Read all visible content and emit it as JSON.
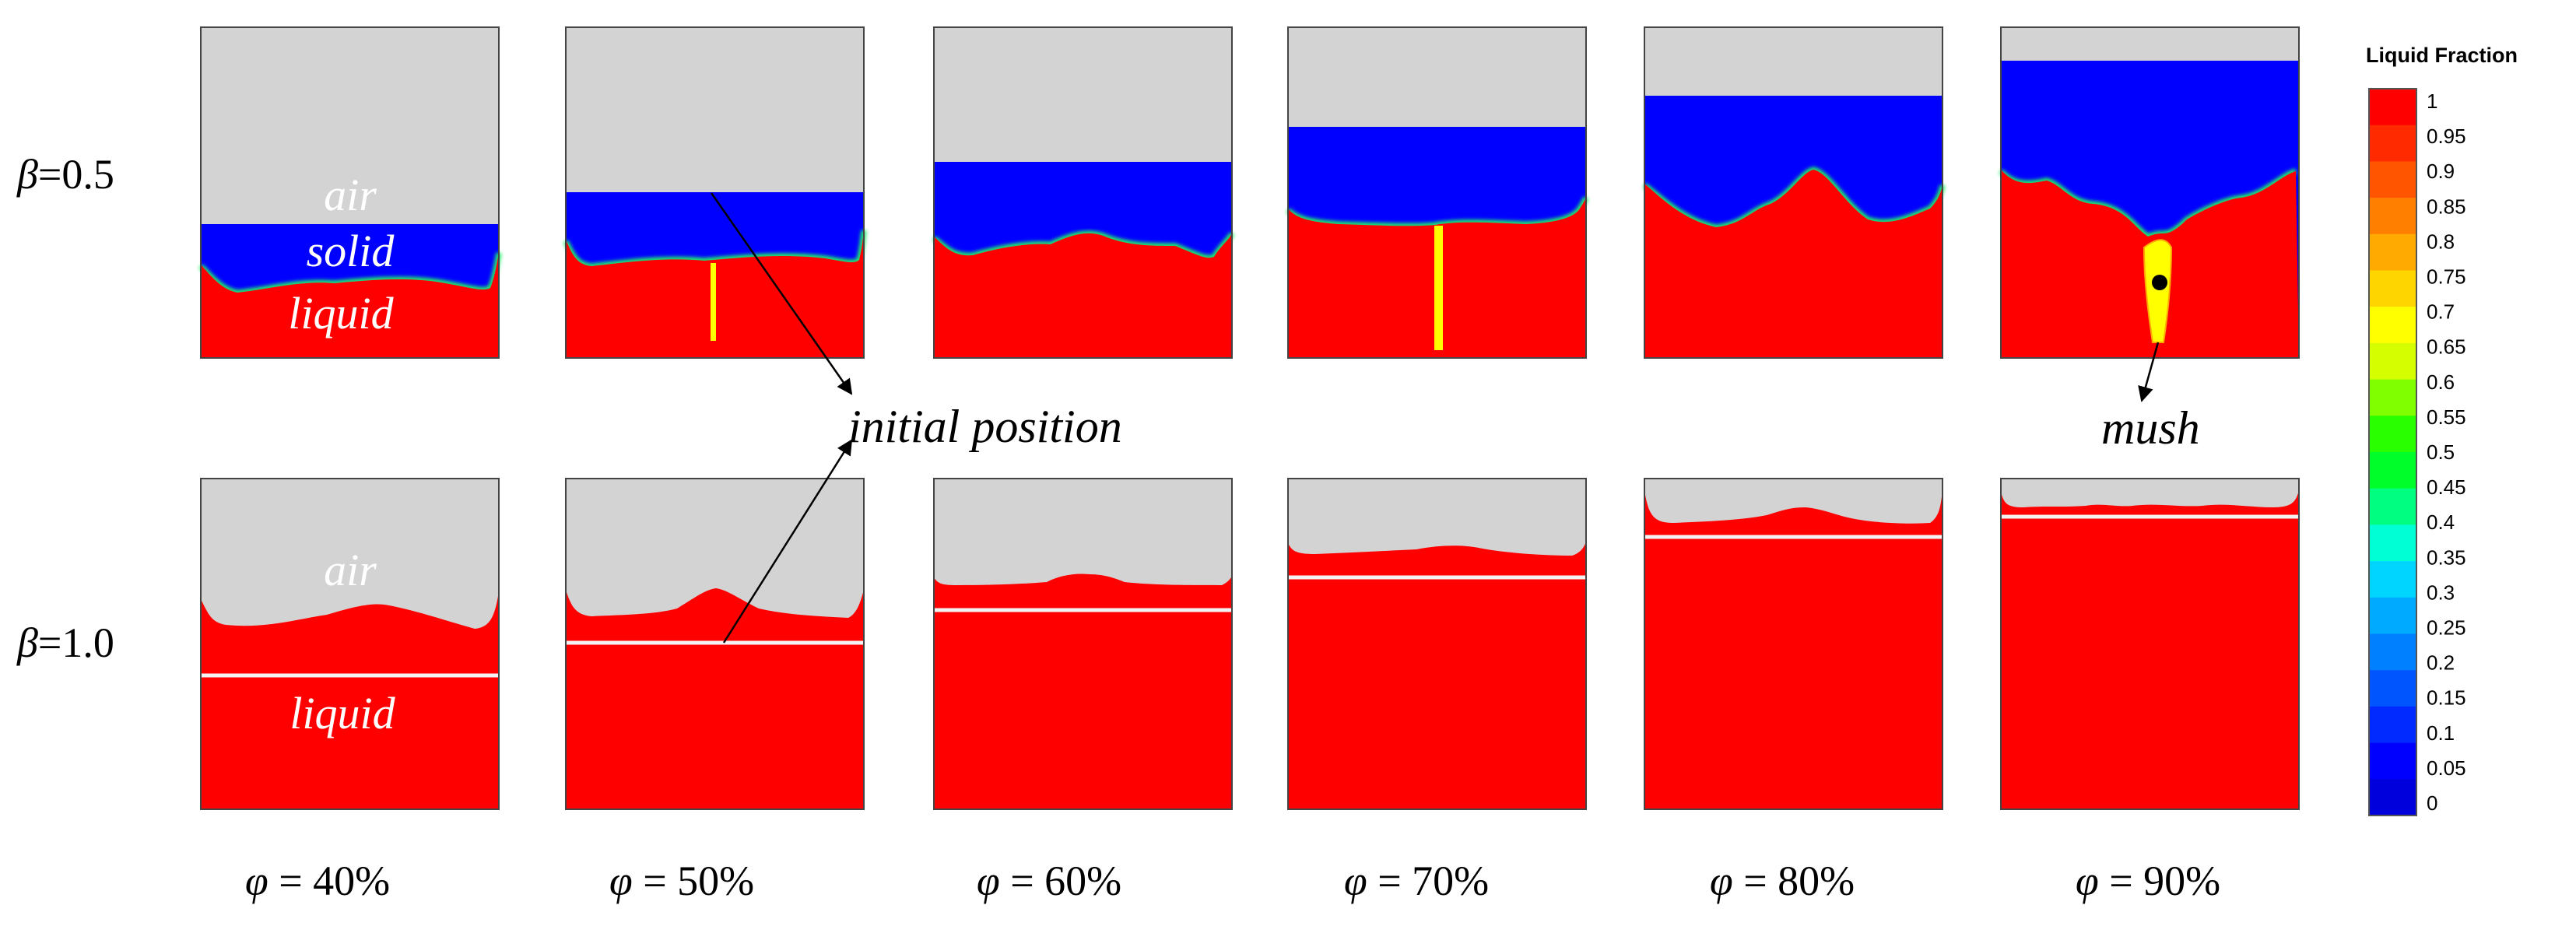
{
  "figure": {
    "row_labels": [
      {
        "beta_symbol": "β",
        "beta_value": "=0.5"
      },
      {
        "beta_symbol": "β",
        "beta_value": "=1.0"
      }
    ],
    "column_labels": [
      {
        "phi_symbol": "φ",
        "phi_value": " = 40%"
      },
      {
        "phi_symbol": "φ",
        "phi_value": " = 50%"
      },
      {
        "phi_symbol": "φ",
        "phi_value": " = 60%"
      },
      {
        "phi_symbol": "φ",
        "phi_value": " = 70%"
      },
      {
        "phi_symbol": "φ",
        "phi_value": " = 80%"
      },
      {
        "phi_symbol": "φ",
        "phi_value": " = 90%"
      }
    ],
    "region_labels": {
      "air": "air",
      "solid": "solid",
      "liquid": "liquid"
    },
    "annotations": {
      "initial_position": "initial position",
      "mush": "mush"
    },
    "colorbar": {
      "title": "Liquid Fraction",
      "ticks": [
        "1",
        "0.95",
        "0.9",
        "0.85",
        "0.8",
        "0.75",
        "0.7",
        "0.65",
        "0.6",
        "0.55",
        "0.5",
        "0.45",
        "0.4",
        "0.35",
        "0.3",
        "0.25",
        "0.2",
        "0.15",
        "0.1",
        "0.05",
        "0"
      ],
      "colors": [
        "#ff0000",
        "#ff2a00",
        "#ff5500",
        "#ff8000",
        "#ffaa00",
        "#ffd500",
        "#ffff00",
        "#d5ff00",
        "#80ff00",
        "#2aff00",
        "#00ff2a",
        "#00ff80",
        "#00ffd5",
        "#00d5ff",
        "#00aaff",
        "#0080ff",
        "#0055ff",
        "#002aff",
        "#0000ff",
        "#0000dd"
      ]
    },
    "colors": {
      "air": "#d3d3d3",
      "solid": "#0000ff",
      "liquid": "#ff0000",
      "mush": "#ffff00",
      "initial_line": "#f3f3f3"
    }
  }
}
